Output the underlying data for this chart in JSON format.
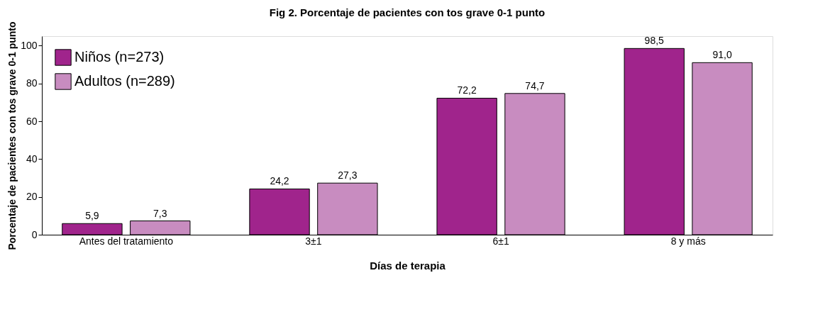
{
  "chart_data": {
    "type": "bar",
    "title": "Fig 2. Porcentaje de pacientes con tos grave 0-1 punto",
    "xlabel": "Días de terapia",
    "ylabel": "Porcentaje de pacientes con tos grave 0-1 punto",
    "categories": [
      "Antes del tratamiento",
      "3±1",
      "6±1",
      "8  y más"
    ],
    "series": [
      {
        "name": "Niños (n=273)",
        "color": "#a0248c",
        "values": [
          5.9,
          24.2,
          72.2,
          98.5
        ],
        "value_labels": [
          "5,9",
          "24,2",
          "72,2",
          "98,5"
        ]
      },
      {
        "name": "Adultos (n=289)",
        "color": "#c88cc0",
        "values": [
          7.3,
          27.3,
          74.7,
          91.0
        ],
        "value_labels": [
          "7,3",
          "27,3",
          "74,7",
          "91,0"
        ]
      }
    ],
    "ylim": [
      0,
      105
    ],
    "yticks": [
      0,
      20,
      40,
      60,
      80,
      100
    ],
    "grid": false,
    "legend": "top left"
  }
}
